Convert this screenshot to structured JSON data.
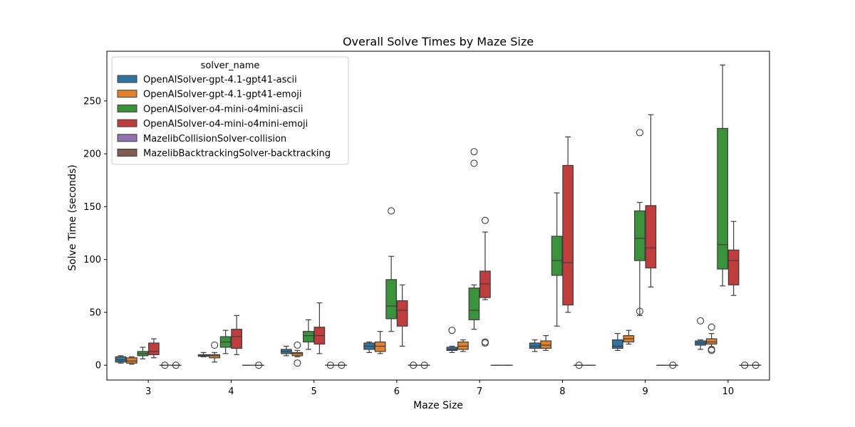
{
  "chart_data": {
    "type": "box",
    "title": "Overall Solve Times by Maze Size",
    "xlabel": "Maze Size",
    "ylabel": "Solve Time (seconds)",
    "categories": [
      "3",
      "4",
      "5",
      "6",
      "7",
      "8",
      "9",
      "10"
    ],
    "ylim": [
      -14,
      297
    ],
    "yticks": [
      0,
      50,
      100,
      150,
      200,
      250
    ],
    "legend": {
      "title": "solver_name",
      "placement": "top-left",
      "entries": [
        "OpenAISolver-gpt-4.1-gpt41-ascii",
        "OpenAISolver-gpt-4.1-gpt41-emoji",
        "OpenAISolver-o4-mini-o4mini-ascii",
        "OpenAISolver-o4-mini-o4mini-emoji",
        "MazelibCollisionSolver-collision",
        "MazelibBacktrackingSolver-backtracking"
      ]
    },
    "series": [
      {
        "name": "OpenAISolver-gpt-4.1-gpt41-ascii",
        "color": "#3274a1",
        "boxes": [
          {
            "min": 2,
            "q1": 3,
            "median": 5,
            "q3": 8,
            "max": 9,
            "outliers": []
          },
          {
            "min": 8,
            "q1": 8.5,
            "median": 9,
            "q3": 10,
            "max": 12,
            "outliers": []
          },
          {
            "min": 9,
            "q1": 11,
            "median": 13,
            "q3": 15,
            "max": 18,
            "outliers": []
          },
          {
            "min": 12,
            "q1": 15,
            "median": 18,
            "q3": 21,
            "max": 22,
            "outliers": []
          },
          {
            "min": 12,
            "q1": 14,
            "median": 15,
            "q3": 17,
            "max": 18,
            "outliers": [
              33
            ]
          },
          {
            "min": 13,
            "q1": 16,
            "median": 18,
            "q3": 21,
            "max": 24,
            "outliers": []
          },
          {
            "min": 14,
            "q1": 16,
            "median": 18,
            "q3": 24,
            "max": 30,
            "outliers": []
          },
          {
            "min": 15,
            "q1": 19,
            "median": 21,
            "q3": 23,
            "max": 24,
            "outliers": [
              42
            ]
          }
        ]
      },
      {
        "name": "OpenAISolver-gpt-4.1-gpt41-emoji",
        "color": "#e1812c",
        "boxes": [
          {
            "min": 1,
            "q1": 2,
            "median": 4,
            "q3": 7,
            "max": 8,
            "outliers": []
          },
          {
            "min": 3,
            "q1": 7,
            "median": 9,
            "q3": 10,
            "max": 12,
            "outliers": [
              19
            ]
          },
          {
            "min": 8,
            "q1": 9,
            "median": 11,
            "q3": 12,
            "max": 14,
            "outliers": [
              19,
              2
            ]
          },
          {
            "min": 11,
            "q1": 13,
            "median": 18,
            "q3": 22,
            "max": 32,
            "outliers": []
          },
          {
            "min": 13,
            "q1": 15,
            "median": 18,
            "q3": 22,
            "max": 24,
            "outliers": []
          },
          {
            "min": 14,
            "q1": 16,
            "median": 19,
            "q3": 23,
            "max": 28,
            "outliers": []
          },
          {
            "min": 20,
            "q1": 22,
            "median": 25,
            "q3": 28,
            "max": 33,
            "outliers": []
          },
          {
            "min": 17,
            "q1": 20,
            "median": 22,
            "q3": 25,
            "max": 30,
            "outliers": [
              36,
              15,
              14
            ]
          }
        ]
      },
      {
        "name": "OpenAISolver-o4-mini-o4mini-ascii",
        "color": "#3a923a",
        "boxes": [
          {
            "min": 6,
            "q1": 9,
            "median": 11,
            "q3": 13,
            "max": 17,
            "outliers": []
          },
          {
            "min": 11,
            "q1": 17,
            "median": 22,
            "q3": 27,
            "max": 33,
            "outliers": []
          },
          {
            "min": 15,
            "q1": 22,
            "median": 28,
            "q3": 32,
            "max": 43,
            "outliers": []
          },
          {
            "min": 32,
            "q1": 44,
            "median": 56,
            "q3": 81,
            "max": 103,
            "outliers": [
              146
            ]
          },
          {
            "min": 34,
            "q1": 43,
            "median": 52,
            "q3": 73,
            "max": 76,
            "outliers": [
              202,
              191
            ]
          },
          {
            "min": 37,
            "q1": 85,
            "median": 99,
            "q3": 122,
            "max": 163,
            "outliers": []
          },
          {
            "min": 47,
            "q1": 99,
            "median": 120,
            "q3": 146,
            "max": 154,
            "outliers": [
              220,
              51
            ]
          },
          {
            "min": 75,
            "q1": 91,
            "median": 114,
            "q3": 224,
            "max": 284,
            "outliers": []
          }
        ]
      },
      {
        "name": "OpenAISolver-o4-mini-o4mini-emoji",
        "color": "#c03d3e",
        "boxes": [
          {
            "min": 7,
            "q1": 10,
            "median": 13,
            "q3": 21,
            "max": 25,
            "outliers": []
          },
          {
            "min": 10,
            "q1": 16,
            "median": 27,
            "q3": 34,
            "max": 47,
            "outliers": []
          },
          {
            "min": 11,
            "q1": 20,
            "median": 28,
            "q3": 36,
            "max": 59,
            "outliers": []
          },
          {
            "min": 18,
            "q1": 37,
            "median": 52,
            "q3": 61,
            "max": 76,
            "outliers": []
          },
          {
            "min": 62,
            "q1": 64,
            "median": 77,
            "q3": 89,
            "max": 126,
            "outliers": [
              137,
              22,
              21
            ]
          },
          {
            "min": 50,
            "q1": 57,
            "median": 97,
            "q3": 189,
            "max": 216,
            "outliers": []
          },
          {
            "min": 74,
            "q1": 92,
            "median": 111,
            "q3": 151,
            "max": 237,
            "outliers": []
          },
          {
            "min": 66,
            "q1": 76,
            "median": 99,
            "q3": 109,
            "max": 136,
            "outliers": []
          }
        ]
      },
      {
        "name": "MazelibCollisionSolver-collision",
        "color": "#9372b2",
        "boxes": [
          {
            "min": 0,
            "q1": 0,
            "median": 0,
            "q3": 0,
            "max": 0,
            "outliers": [
              0
            ]
          },
          {
            "min": 0,
            "q1": 0,
            "median": 0,
            "q3": 0,
            "max": 0,
            "outliers": []
          },
          {
            "min": 0,
            "q1": 0,
            "median": 0,
            "q3": 0,
            "max": 0,
            "outliers": [
              0
            ]
          },
          {
            "min": 0,
            "q1": 0,
            "median": 0,
            "q3": 0,
            "max": 0,
            "outliers": [
              0
            ]
          },
          {
            "min": 0,
            "q1": 0,
            "median": 0,
            "q3": 0,
            "max": 0,
            "outliers": []
          },
          {
            "min": 0,
            "q1": 0,
            "median": 0,
            "q3": 0,
            "max": 0,
            "outliers": [
              0
            ]
          },
          {
            "min": 0,
            "q1": 0,
            "median": 0,
            "q3": 0,
            "max": 0,
            "outliers": []
          },
          {
            "min": 0,
            "q1": 0,
            "median": 0,
            "q3": 0,
            "max": 0,
            "outliers": [
              0
            ]
          }
        ]
      },
      {
        "name": "MazelibBacktrackingSolver-backtracking",
        "color": "#845b53",
        "boxes": [
          {
            "min": 0,
            "q1": 0,
            "median": 0,
            "q3": 0,
            "max": 0,
            "outliers": [
              0
            ]
          },
          {
            "min": 0,
            "q1": 0,
            "median": 0,
            "q3": 0,
            "max": 0,
            "outliers": [
              0
            ]
          },
          {
            "min": 0,
            "q1": 0,
            "median": 0,
            "q3": 0,
            "max": 0,
            "outliers": [
              0
            ]
          },
          {
            "min": 0,
            "q1": 0,
            "median": 0,
            "q3": 0,
            "max": 0,
            "outliers": [
              0
            ]
          },
          {
            "min": 0,
            "q1": 0,
            "median": 0,
            "q3": 0,
            "max": 0,
            "outliers": []
          },
          {
            "min": 0,
            "q1": 0,
            "median": 0,
            "q3": 0,
            "max": 0,
            "outliers": []
          },
          {
            "min": 0,
            "q1": 0,
            "median": 0,
            "q3": 0,
            "max": 0,
            "outliers": [
              0
            ]
          },
          {
            "min": 0,
            "q1": 0,
            "median": 0,
            "q3": 0,
            "max": 0,
            "outliers": [
              0
            ]
          }
        ]
      }
    ]
  }
}
